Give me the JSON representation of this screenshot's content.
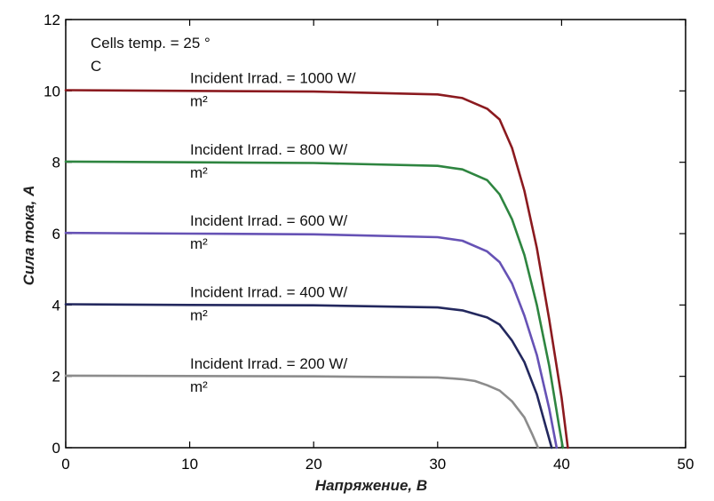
{
  "chart_data": {
    "type": "line",
    "title": "",
    "xlabel": "Напряжение, В",
    "ylabel": "Сила тока, А",
    "xlim": [
      0,
      50
    ],
    "ylim": [
      0,
      12
    ],
    "xticks": [
      "0",
      "10",
      "20",
      "30",
      "40",
      "50"
    ],
    "yticks": [
      "0",
      "2",
      "4",
      "6",
      "8",
      "10",
      "12"
    ],
    "grid": false,
    "legend": "none",
    "annotations": {
      "temperature_line1": "Cells temp. = 25 °",
      "temperature_line2": "C"
    },
    "series": [
      {
        "label_line1": "Incident Irrad. = 1000 W/",
        "label_line2": "m²",
        "color": "#8b1a1f",
        "points": [
          [
            0,
            10.02
          ],
          [
            10,
            10.0
          ],
          [
            20,
            9.98
          ],
          [
            30,
            9.9
          ],
          [
            32,
            9.8
          ],
          [
            34,
            9.5
          ],
          [
            35,
            9.2
          ],
          [
            36,
            8.4
          ],
          [
            37,
            7.2
          ],
          [
            38,
            5.6
          ],
          [
            39,
            3.6
          ],
          [
            40,
            1.4
          ],
          [
            40.5,
            0.0
          ]
        ]
      },
      {
        "label_line1": "Incident Irrad. = 800 W/",
        "label_line2": "m²",
        "color": "#2e8540",
        "points": [
          [
            0,
            8.02
          ],
          [
            10,
            8.0
          ],
          [
            20,
            7.98
          ],
          [
            30,
            7.9
          ],
          [
            32,
            7.8
          ],
          [
            34,
            7.5
          ],
          [
            35,
            7.1
          ],
          [
            36,
            6.4
          ],
          [
            37,
            5.4
          ],
          [
            38,
            4.0
          ],
          [
            39,
            2.3
          ],
          [
            39.8,
            0.6
          ],
          [
            40.1,
            0.0
          ]
        ]
      },
      {
        "label_line1": "Incident Irrad. = 600 W/",
        "label_line2": "m²",
        "color": "#6652b5",
        "points": [
          [
            0,
            6.02
          ],
          [
            10,
            6.0
          ],
          [
            20,
            5.98
          ],
          [
            30,
            5.9
          ],
          [
            32,
            5.8
          ],
          [
            34,
            5.5
          ],
          [
            35,
            5.2
          ],
          [
            36,
            4.6
          ],
          [
            37,
            3.7
          ],
          [
            38,
            2.6
          ],
          [
            39,
            1.1
          ],
          [
            39.6,
            0.0
          ]
        ]
      },
      {
        "label_line1": "Incident Irrad. = 400 W/",
        "label_line2": "m²",
        "color": "#23285e",
        "points": [
          [
            0,
            4.02
          ],
          [
            10,
            4.0
          ],
          [
            20,
            3.99
          ],
          [
            30,
            3.93
          ],
          [
            32,
            3.85
          ],
          [
            34,
            3.65
          ],
          [
            35,
            3.45
          ],
          [
            36,
            3.0
          ],
          [
            37,
            2.4
          ],
          [
            38,
            1.5
          ],
          [
            38.8,
            0.5
          ],
          [
            39.2,
            0.0
          ]
        ]
      },
      {
        "label_line1": "Incident Irrad. = 200 W/",
        "label_line2": "m²",
        "color": "#8c8c8c",
        "points": [
          [
            0,
            2.02
          ],
          [
            10,
            2.01
          ],
          [
            20,
            2.0
          ],
          [
            30,
            1.97
          ],
          [
            32,
            1.92
          ],
          [
            33,
            1.87
          ],
          [
            34,
            1.75
          ],
          [
            35,
            1.6
          ],
          [
            36,
            1.3
          ],
          [
            37,
            0.85
          ],
          [
            37.6,
            0.4
          ],
          [
            38.1,
            0.0
          ]
        ]
      }
    ]
  }
}
